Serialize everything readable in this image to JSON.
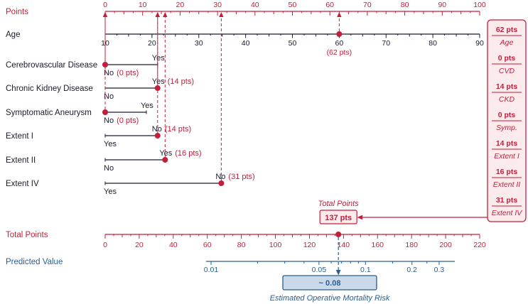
{
  "figure": {
    "colors": {
      "red": "#C41E3A",
      "ink": "#1A1A2E",
      "blue": "#2A5E8F",
      "pink": "#FBEBEC",
      "blue_fill": "#C9D9EA",
      "background": "#FFFFFF"
    }
  },
  "chart_data": {
    "type": "nomogram",
    "points_axis": {
      "label": "Points",
      "min": 0,
      "max": 100,
      "major_tick_step": 10,
      "tick_labels": [
        "0",
        "10",
        "20",
        "30",
        "40",
        "50",
        "60",
        "70",
        "80",
        "90",
        "100"
      ]
    },
    "age_axis": {
      "label": "Age",
      "min": 10,
      "max": 90,
      "major_tick_step": 10,
      "tick_labels": [
        "10",
        "20",
        "30",
        "40",
        "50",
        "60",
        "70",
        "80",
        "90"
      ],
      "selected_value": 60,
      "selected_points": 62,
      "annotation": "(62 pts)"
    },
    "variables": [
      {
        "label": "Cerebrovascular Disease",
        "abbr": "CVD",
        "line_max_points": 14,
        "top_label": {
          "text": "Yes",
          "pts": ""
        },
        "top_at": 14,
        "bottom_label": {
          "text": "No",
          "pts": "(0 pts)"
        },
        "bottom_at": 0,
        "selected_points": 0,
        "marker_at": 0
      },
      {
        "label": "Chronic Kidney Disease",
        "abbr": "CKD",
        "line_max_points": 14,
        "top_label": {
          "text": "Yes",
          "pts": "(14 pts)"
        },
        "top_at": 14,
        "bottom_label": {
          "text": "No",
          "pts": ""
        },
        "bottom_at": 0,
        "selected_points": 14,
        "marker_at": 14
      },
      {
        "label": "Symptomatic Aneurysm",
        "abbr": "Symp.",
        "line_max_points": 11,
        "top_label": {
          "text": "Yes",
          "pts": ""
        },
        "top_at": 11,
        "bottom_label": {
          "text": "No",
          "pts": "(0 pts)"
        },
        "bottom_at": 0,
        "selected_points": 0,
        "marker_at": 0
      },
      {
        "label": "Extent I",
        "abbr": "Extent I",
        "line_max_points": 14,
        "top_label": {
          "text": "No",
          "pts": "(14 pts)"
        },
        "top_at": 14,
        "bottom_label": {
          "text": "Yes",
          "pts": ""
        },
        "bottom_at": 0,
        "selected_points": 14,
        "marker_at": 14
      },
      {
        "label": "Extent II",
        "abbr": "Extent II",
        "line_max_points": 16,
        "top_label": {
          "text": "Yes",
          "pts": "(16 pts)"
        },
        "top_at": 16,
        "bottom_label": {
          "text": "No",
          "pts": ""
        },
        "bottom_at": 0,
        "selected_points": 16,
        "marker_at": 16
      },
      {
        "label": "Extent IV",
        "abbr": "Extent IV",
        "line_max_points": 31,
        "top_label": {
          "text": "No",
          "pts": "(31 pts)"
        },
        "top_at": 31,
        "bottom_label": {
          "text": "Yes",
          "pts": ""
        },
        "bottom_at": 0,
        "selected_points": 31,
        "marker_at": 31
      }
    ],
    "total_points_axis": {
      "label": "Total Points",
      "min": 0,
      "max": 220,
      "major_tick_step": 20,
      "tick_labels": [
        "0",
        "20",
        "40",
        "60",
        "80",
        "100",
        "120",
        "140",
        "160",
        "180",
        "200",
        "220"
      ],
      "selected_value": 137,
      "callout_title": "Total Points",
      "callout_value": "137 pts"
    },
    "predicted_axis": {
      "label": "Predicted Value",
      "scale": "log",
      "tick_values": [
        0.01,
        0.05,
        0.1,
        0.2,
        0.3
      ],
      "tick_labels": [
        "0.01",
        "0.05",
        "0.1",
        "0.2",
        "0.3"
      ],
      "minor_tick_values": [
        0.02,
        0.03,
        0.04,
        0.06,
        0.07,
        0.08,
        0.09,
        0.15,
        0.25
      ],
      "estimate_value": 0.08,
      "estimate_label": "~ 0.08",
      "caption": "Estimated Operative Mortality Risk"
    },
    "summary_panel": {
      "entries": [
        {
          "points": "62 pts",
          "name": "Age"
        },
        {
          "points": "0 pts",
          "name": "CVD"
        },
        {
          "points": "14 pts",
          "name": "CKD"
        },
        {
          "points": "0 pts",
          "name": "Symp."
        },
        {
          "points": "14 pts",
          "name": "Extent I"
        },
        {
          "points": "16 pts",
          "name": "Extent II"
        },
        {
          "points": "31 pts",
          "name": "Extent IV"
        }
      ]
    }
  }
}
